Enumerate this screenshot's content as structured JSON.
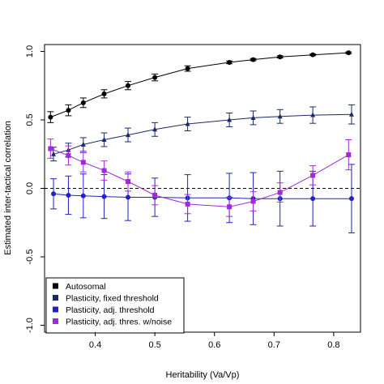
{
  "chart_data": {
    "type": "line",
    "title": "",
    "xlabel": "Heritability (Va/Vp)",
    "ylabel": "Estimated inter-tactical correlation",
    "xlim": [
      0.315,
      0.845
    ],
    "ylim": [
      -1.05,
      1.05
    ],
    "xticks": [
      "0.4",
      "0.5",
      "0.6",
      "0.7",
      "0.8"
    ],
    "yticks": [
      "-1.0",
      "-0.5",
      "0.0",
      "0.5",
      "1.0"
    ],
    "reference_line": {
      "y": 0,
      "style": "dashed"
    },
    "grid": false,
    "legend_position": "bottom-left",
    "series": [
      {
        "name": "Autosomal",
        "color": "#000000",
        "marker": "circle",
        "points": [
          {
            "x": 0.325,
            "y": 0.52,
            "err": 0.04
          },
          {
            "x": 0.355,
            "y": 0.57,
            "err": 0.04
          },
          {
            "x": 0.38,
            "y": 0.625,
            "err": 0.035
          },
          {
            "x": 0.415,
            "y": 0.69,
            "err": 0.03
          },
          {
            "x": 0.455,
            "y": 0.75,
            "err": 0.03
          },
          {
            "x": 0.5,
            "y": 0.81,
            "err": 0.025
          },
          {
            "x": 0.555,
            "y": 0.875,
            "err": 0.02
          },
          {
            "x": 0.625,
            "y": 0.92,
            "err": 0.01
          },
          {
            "x": 0.665,
            "y": 0.94,
            "err": 0.008
          },
          {
            "x": 0.71,
            "y": 0.96,
            "err": 0.008
          },
          {
            "x": 0.765,
            "y": 0.975,
            "err": 0.006
          },
          {
            "x": 0.825,
            "y": 0.99,
            "err": 0.006
          }
        ]
      },
      {
        "name": "Plasticity, fixed threshold",
        "color": "#1b2a66",
        "marker": "triangle",
        "points": [
          {
            "x": 0.33,
            "y": 0.25,
            "err": 0.05
          },
          {
            "x": 0.355,
            "y": 0.28,
            "err": 0.05
          },
          {
            "x": 0.38,
            "y": 0.32,
            "err": 0.05
          },
          {
            "x": 0.415,
            "y": 0.355,
            "err": 0.05
          },
          {
            "x": 0.455,
            "y": 0.39,
            "err": 0.05
          },
          {
            "x": 0.5,
            "y": 0.43,
            "err": 0.05
          },
          {
            "x": 0.555,
            "y": 0.47,
            "err": 0.05
          },
          {
            "x": 0.625,
            "y": 0.5,
            "err": 0.05
          },
          {
            "x": 0.665,
            "y": 0.515,
            "err": 0.05
          },
          {
            "x": 0.71,
            "y": 0.525,
            "err": 0.05
          },
          {
            "x": 0.765,
            "y": 0.535,
            "err": 0.06
          },
          {
            "x": 0.83,
            "y": 0.54,
            "err": 0.07
          }
        ]
      },
      {
        "name": "Plasticity, adj. threshold",
        "color": "#1f22c4",
        "marker": "circle",
        "points": [
          {
            "x": 0.33,
            "y": -0.04,
            "err": 0.11
          },
          {
            "x": 0.355,
            "y": -0.05,
            "err": 0.14
          },
          {
            "x": 0.38,
            "y": -0.055,
            "err": 0.16
          },
          {
            "x": 0.415,
            "y": -0.06,
            "err": 0.16
          },
          {
            "x": 0.455,
            "y": -0.065,
            "err": 0.17
          },
          {
            "x": 0.5,
            "y": -0.065,
            "err": 0.14
          },
          {
            "x": 0.555,
            "y": -0.07,
            "err": 0.17
          },
          {
            "x": 0.625,
            "y": -0.07,
            "err": 0.18
          },
          {
            "x": 0.665,
            "y": -0.075,
            "err": 0.19
          },
          {
            "x": 0.71,
            "y": -0.075,
            "err": 0.2
          },
          {
            "x": 0.765,
            "y": -0.075,
            "err": 0.2
          },
          {
            "x": 0.83,
            "y": -0.075,
            "err": 0.25
          }
        ]
      },
      {
        "name": "Plasticity, adj. thres. w/noise",
        "color": "#a02bd6",
        "marker": "square",
        "points": [
          {
            "x": 0.325,
            "y": 0.29,
            "err": 0.07
          },
          {
            "x": 0.355,
            "y": 0.24,
            "err": 0.07
          },
          {
            "x": 0.38,
            "y": 0.19,
            "err": 0.07
          },
          {
            "x": 0.415,
            "y": 0.13,
            "err": 0.07
          },
          {
            "x": 0.455,
            "y": 0.05,
            "err": 0.07
          },
          {
            "x": 0.5,
            "y": -0.05,
            "err": 0.07
          },
          {
            "x": 0.555,
            "y": -0.115,
            "err": 0.07
          },
          {
            "x": 0.625,
            "y": -0.135,
            "err": 0.07
          },
          {
            "x": 0.665,
            "y": -0.095,
            "err": 0.07
          },
          {
            "x": 0.71,
            "y": -0.03,
            "err": 0.07
          },
          {
            "x": 0.765,
            "y": 0.095,
            "err": 0.07
          },
          {
            "x": 0.825,
            "y": 0.245,
            "err": 0.11
          }
        ]
      }
    ]
  }
}
